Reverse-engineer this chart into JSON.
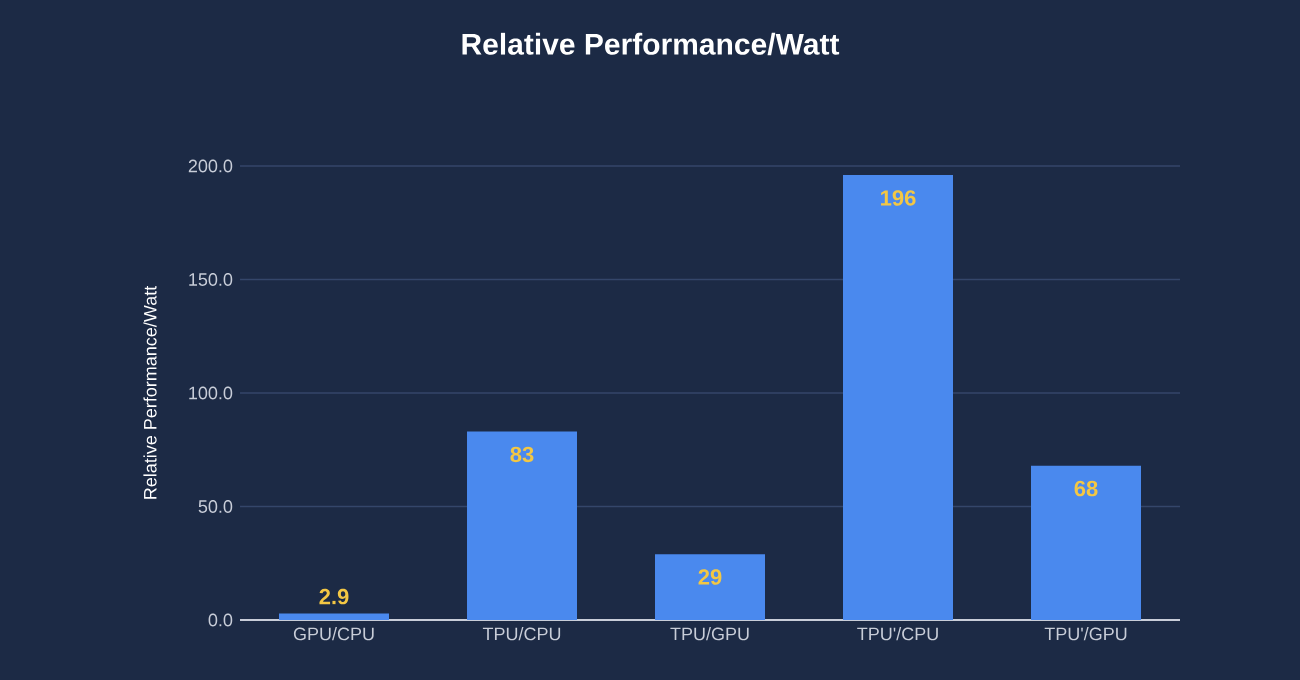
{
  "chart_data": {
    "type": "bar",
    "title": "Relative Performance/Watt",
    "ylabel": "Relative Performance/Watt",
    "categories": [
      "GPU/CPU",
      "TPU/CPU",
      "TPU/GPU",
      "TPU'/CPU",
      "TPU'/GPU"
    ],
    "values": [
      2.9,
      83,
      29,
      196,
      68
    ],
    "color": "#4a89ee",
    "data_labels": true,
    "grid": "y",
    "ylim": [
      0,
      200
    ],
    "yticks": [
      {
        "value": 0,
        "label": "0.0"
      },
      {
        "value": 50,
        "label": "50.0"
      },
      {
        "value": 100,
        "label": "100.0"
      },
      {
        "value": 150,
        "label": "150.0"
      },
      {
        "value": 200,
        "label": "200.0"
      }
    ]
  }
}
